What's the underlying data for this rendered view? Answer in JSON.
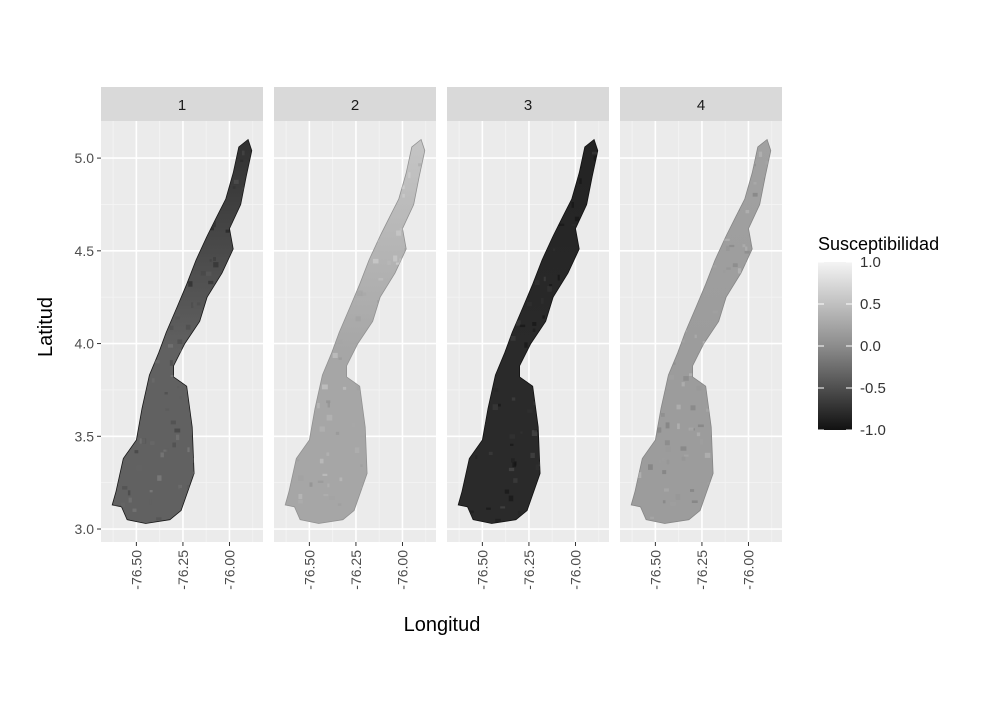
{
  "chart_data": {
    "type": "heatmap",
    "title": "",
    "xlabel": "Longitud",
    "ylabel": "Latitud",
    "facets": [
      "1",
      "2",
      "3",
      "4"
    ],
    "x_ticks": [
      -76.5,
      -76.25,
      -76.0
    ],
    "x_tick_labels": [
      "-76.50",
      "-76.25",
      "-76.00"
    ],
    "y_ticks": [
      3.0,
      3.5,
      4.0,
      4.5,
      5.0
    ],
    "y_tick_labels": [
      "3.0",
      "3.5",
      "4.0",
      "4.5",
      "5.0"
    ],
    "xlim": [
      -76.69,
      -75.82
    ],
    "ylim": [
      2.93,
      5.2
    ],
    "grid": true,
    "legend": {
      "title": "Susceptibilidad",
      "position": "right",
      "ticks": [
        1.0,
        0.5,
        0.0,
        -0.5,
        -1.0
      ],
      "tick_labels": [
        "1.0",
        "0.5",
        "0.0",
        "-0.5",
        "-1.0"
      ],
      "range": [
        -1.0,
        1.0
      ],
      "colors": {
        "low": "#111111",
        "mid": "#8c8c8c",
        "high": "#f4f4f4"
      }
    },
    "region_outline_lonlat": [
      [
        -76.58,
        3.12
      ],
      [
        -76.55,
        3.05
      ],
      [
        -76.45,
        3.03
      ],
      [
        -76.32,
        3.05
      ],
      [
        -76.26,
        3.1
      ],
      [
        -76.19,
        3.3
      ],
      [
        -76.2,
        3.55
      ],
      [
        -76.23,
        3.77
      ],
      [
        -76.3,
        3.82
      ],
      [
        -76.3,
        3.88
      ],
      [
        -76.24,
        4.0
      ],
      [
        -76.16,
        4.12
      ],
      [
        -76.12,
        4.25
      ],
      [
        -76.04,
        4.38
      ],
      [
        -75.98,
        4.51
      ],
      [
        -76.0,
        4.62
      ],
      [
        -75.94,
        4.75
      ],
      [
        -75.91,
        4.9
      ],
      [
        -75.88,
        5.04
      ],
      [
        -75.9,
        5.1
      ],
      [
        -75.95,
        5.06
      ],
      [
        -75.98,
        4.92
      ],
      [
        -76.02,
        4.78
      ],
      [
        -76.07,
        4.68
      ],
      [
        -76.12,
        4.58
      ],
      [
        -76.18,
        4.45
      ],
      [
        -76.23,
        4.32
      ],
      [
        -76.28,
        4.2
      ],
      [
        -76.34,
        4.06
      ],
      [
        -76.38,
        3.95
      ],
      [
        -76.43,
        3.83
      ],
      [
        -76.47,
        3.65
      ],
      [
        -76.5,
        3.48
      ],
      [
        -76.57,
        3.38
      ],
      [
        -76.61,
        3.2
      ],
      [
        -76.63,
        3.13
      ]
    ],
    "facet_mean_susceptibility": [
      -0.35,
      0.25,
      -0.8,
      0.15
    ],
    "facet_north_mean_susceptibility": [
      -0.75,
      0.55,
      -0.85,
      0.2
    ]
  }
}
